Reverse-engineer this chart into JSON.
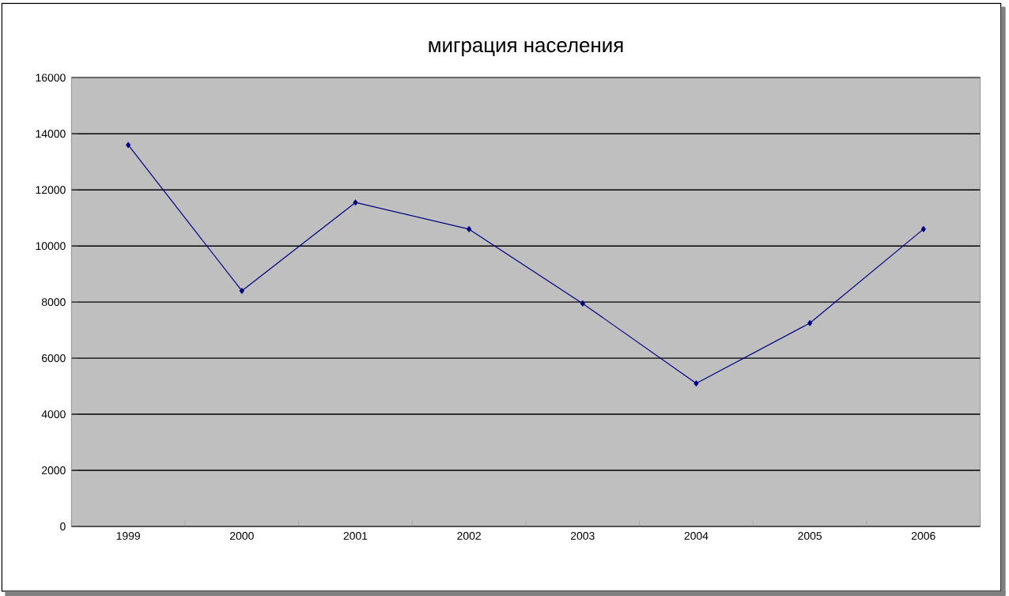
{
  "chart_data": {
    "type": "line",
    "title": "миграция населения",
    "categories": [
      "1999",
      "2000",
      "2001",
      "2002",
      "2003",
      "2004",
      "2005",
      "2006"
    ],
    "series": [
      {
        "color": "#000080",
        "values": [
          13600,
          8400,
          11550,
          10600,
          7950,
          5100,
          7250,
          10600
        ]
      }
    ],
    "ylim": [
      0,
      16000
    ],
    "yticks": [
      0,
      2000,
      4000,
      6000,
      8000,
      10000,
      12000,
      14000,
      16000
    ],
    "grid": "y",
    "marker": "diamond",
    "line_style": "solid",
    "legend": false
  }
}
